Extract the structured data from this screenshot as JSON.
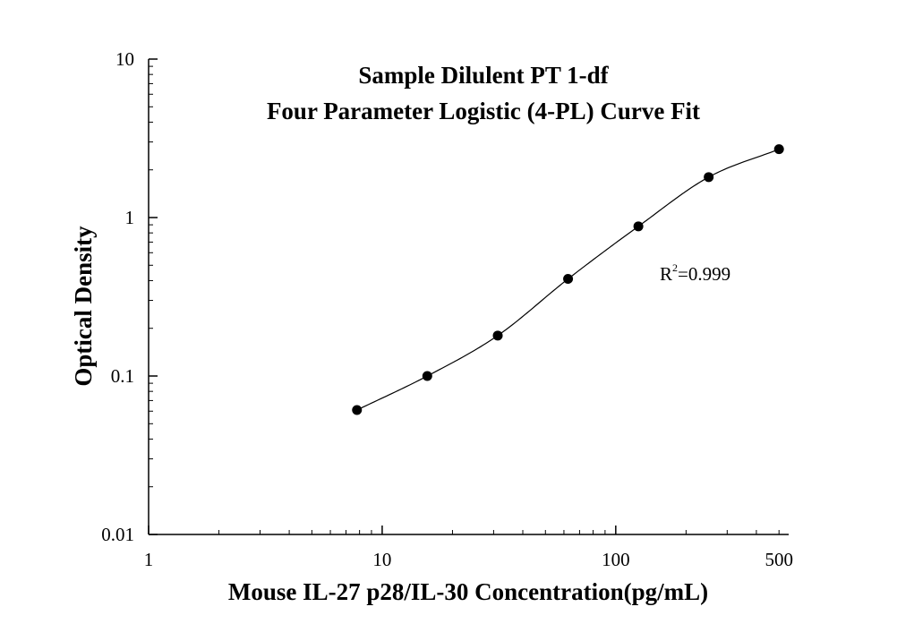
{
  "chart_data": {
    "type": "scatter",
    "title": "Sample Dilulent PT 1-df",
    "subtitle": "Four Parameter Logistic (4-PL) Curve Fit",
    "xlabel": "Mouse IL-27 p28/IL-30 Concentration(pg/mL)",
    "ylabel": "Optical Density",
    "x_scale": "log",
    "y_scale": "log",
    "xlim": [
      1,
      550
    ],
    "ylim": [
      0.01,
      10
    ],
    "x_ticks": [
      {
        "value": 1,
        "label": "1"
      },
      {
        "value": 10,
        "label": "10"
      },
      {
        "value": 100,
        "label": "100"
      },
      {
        "value": 500,
        "label": "500"
      }
    ],
    "y_ticks": [
      {
        "value": 0.01,
        "label": "0.01"
      },
      {
        "value": 0.1,
        "label": "0.1"
      },
      {
        "value": 1,
        "label": "1"
      },
      {
        "value": 10,
        "label": "10"
      }
    ],
    "series": [
      {
        "x": [
          7.8,
          15.6,
          31.25,
          62.5,
          125,
          250,
          500
        ],
        "y": [
          0.061,
          0.1,
          0.18,
          0.41,
          0.88,
          1.8,
          2.7
        ]
      }
    ],
    "fit_curve": {
      "model": "4-PL",
      "x_range": [
        7.8,
        500
      ]
    },
    "annotation": {
      "r_label": "R",
      "r_sup": "2",
      "r_value": "=0.999"
    },
    "grid": false,
    "legend": "none"
  }
}
